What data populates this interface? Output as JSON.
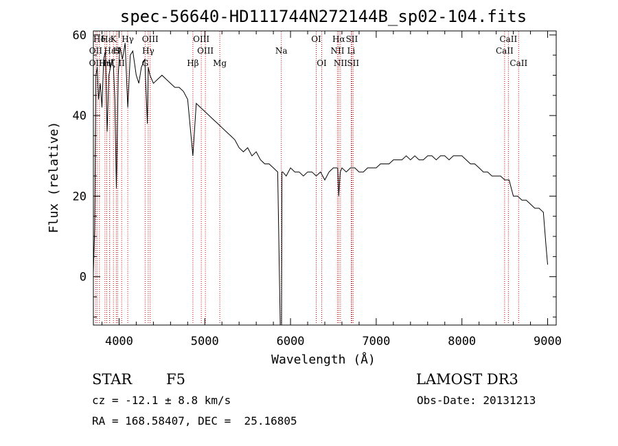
{
  "chart_data": {
    "type": "line",
    "title": "spec-56640-HD111744N272144B_sp02-104.fits",
    "xlabel": "Wavelength (Å)",
    "ylabel": "Flux (relative)",
    "xlim": [
      3700,
      9100
    ],
    "ylim": [
      -12,
      61
    ],
    "xticks": [
      4000,
      5000,
      6000,
      7000,
      8000,
      9000
    ],
    "yticks": [
      0,
      20,
      40,
      60
    ],
    "grid": false,
    "series": [
      {
        "name": "flux",
        "x": [
          3700,
          3715,
          3730,
          3745,
          3760,
          3780,
          3800,
          3820,
          3840,
          3860,
          3880,
          3900,
          3920,
          3935,
          3950,
          3968,
          3990,
          4010,
          4040,
          4070,
          4101,
          4130,
          4160,
          4200,
          4230,
          4260,
          4300,
          4330,
          4340,
          4360,
          4400,
          4450,
          4500,
          4550,
          4600,
          4650,
          4700,
          4750,
          4800,
          4861,
          4900,
          4950,
          5000,
          5050,
          5100,
          5150,
          5200,
          5250,
          5300,
          5350,
          5400,
          5450,
          5500,
          5550,
          5600,
          5650,
          5700,
          5750,
          5800,
          5850,
          5880,
          5890,
          5895,
          5900,
          5910,
          5950,
          6000,
          6050,
          6100,
          6150,
          6200,
          6250,
          6300,
          6350,
          6400,
          6450,
          6500,
          6550,
          6563,
          6580,
          6600,
          6650,
          6700,
          6750,
          6800,
          6850,
          6900,
          6950,
          7000,
          7050,
          7100,
          7150,
          7200,
          7250,
          7300,
          7350,
          7400,
          7450,
          7500,
          7550,
          7600,
          7650,
          7700,
          7750,
          7800,
          7850,
          7900,
          7950,
          8000,
          8050,
          8100,
          8150,
          8200,
          8250,
          8300,
          8350,
          8400,
          8450,
          8500,
          8550,
          8600,
          8650,
          8700,
          8750,
          8800,
          8850,
          8900,
          8950,
          8980,
          9000
        ],
        "values": [
          1,
          12,
          50,
          52,
          44,
          48,
          42,
          54,
          56,
          36,
          50,
          52,
          54,
          52,
          44,
          22,
          50,
          57,
          54,
          58,
          42,
          55,
          56,
          50,
          48,
          52,
          54,
          38,
          52,
          50,
          48,
          49,
          50,
          49,
          48,
          47,
          47,
          46,
          44,
          30,
          43,
          42,
          41,
          40,
          39,
          38,
          37,
          36,
          35,
          34,
          32,
          31,
          32,
          30,
          31,
          29,
          28,
          28,
          27,
          26,
          -12,
          -12,
          -12,
          26,
          26,
          25,
          27,
          26,
          26,
          25,
          26,
          26,
          25,
          26,
          24,
          26,
          27,
          27,
          20,
          26,
          27,
          26,
          27,
          27,
          26,
          26,
          27,
          27,
          27,
          28,
          28,
          28,
          29,
          29,
          29,
          30,
          29,
          30,
          29,
          29,
          30,
          30,
          29,
          30,
          30,
          29,
          30,
          30,
          30,
          29,
          28,
          28,
          27,
          26,
          26,
          25,
          25,
          25,
          24,
          24,
          20,
          20,
          19,
          19,
          18,
          17,
          17,
          16,
          8,
          3
        ]
      }
    ],
    "line_annotations": [
      {
        "label": "Hδ",
        "x": 3770,
        "row": 1
      },
      {
        "label": "OII",
        "x": 3727,
        "row": 2
      },
      {
        "label": "OIII",
        "x": 3745,
        "row": 3
      },
      {
        "label": "Hε",
        "x": 3856,
        "row": 1
      },
      {
        "label": "K",
        "x": 3934,
        "row": 1
      },
      {
        "label": "Hε",
        "x": 3890,
        "row": 2
      },
      {
        "label": "Hη",
        "x": 3835,
        "row": 3
      },
      {
        "label": "H",
        "x": 3968,
        "row": 2
      },
      {
        "label": "S",
        "x": 3983,
        "row": 2
      },
      {
        "label": "Hζ",
        "x": 3889,
        "row": 3
      },
      {
        "label": "Hγ",
        "x": 4101,
        "row": 1
      },
      {
        "label": "II",
        "x": 4030,
        "row": 3
      },
      {
        "label": "OIII",
        "x": 4363,
        "row": 1
      },
      {
        "label": "Hγ",
        "x": 4340,
        "row": 2
      },
      {
        "label": "G",
        "x": 4304,
        "row": 3
      },
      {
        "label": "Hβ",
        "x": 4861,
        "row": 3
      },
      {
        "label": "OIII",
        "x": 4959,
        "row": 1
      },
      {
        "label": "OIII",
        "x": 5007,
        "row": 2
      },
      {
        "label": "Mg",
        "x": 5175,
        "row": 3
      },
      {
        "label": "Na",
        "x": 5893,
        "row": 2
      },
      {
        "label": "OI",
        "x": 6300,
        "row": 1
      },
      {
        "label": "OI",
        "x": 6364,
        "row": 3
      },
      {
        "label": "Hα",
        "x": 6563,
        "row": 1
      },
      {
        "label": "NII",
        "x": 6548,
        "row": 2
      },
      {
        "label": "NII",
        "x": 6583,
        "row": 3
      },
      {
        "label": "SII",
        "x": 6716,
        "row": 1
      },
      {
        "label": "Li",
        "x": 6708,
        "row": 2
      },
      {
        "label": "SII",
        "x": 6731,
        "row": 3
      },
      {
        "label": "CaII",
        "x": 8542,
        "row": 1
      },
      {
        "label": "CaII",
        "x": 8498,
        "row": 2
      },
      {
        "label": "CaII",
        "x": 8662,
        "row": 3
      }
    ]
  },
  "footer": {
    "object_class": "STAR",
    "subclass": "F5",
    "survey": "LAMOST DR3",
    "cz_text": "cz = -12.1 ± 8.8 km/s",
    "obs_date": "Obs-Date: 20131213",
    "radec_text": "RA = 168.58407, DEC =  25.16805"
  },
  "colors": {
    "spectrum": "#000000",
    "line_marker": "#cc0000",
    "background": "#ffffff"
  }
}
